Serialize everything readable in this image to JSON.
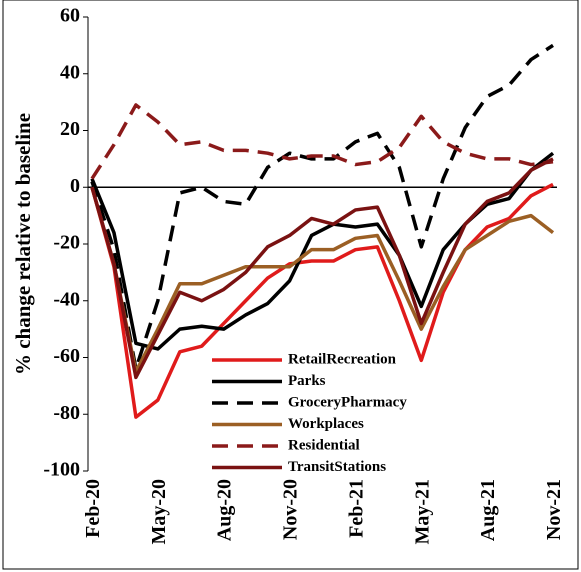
{
  "chart_data": {
    "type": "line",
    "y_label": "% change relative to baseline",
    "categories": [
      "Feb-20",
      null,
      null,
      "May-20",
      null,
      null,
      "Aug-20",
      null,
      null,
      "Nov-20",
      null,
      null,
      "Feb-21",
      null,
      null,
      "May-21",
      null,
      null,
      "Aug-21",
      null,
      null,
      "Nov-21"
    ],
    "ylim": [
      -100,
      60
    ],
    "yticks": [
      -100,
      -80,
      -60,
      -40,
      -20,
      0,
      20,
      40,
      60
    ],
    "legend": "bottom-left",
    "series": [
      {
        "name": "RetailRecreation",
        "color": "#e01b1b",
        "style": "solid",
        "values": [
          0,
          -28,
          -81,
          -75,
          -58,
          -56,
          -48,
          -40,
          -32,
          -27,
          -26,
          -26,
          -22,
          -21,
          -40,
          -61,
          -37,
          -22,
          -14,
          -11,
          -3,
          1
        ]
      },
      {
        "name": "Parks",
        "color": "#000000",
        "style": "solid",
        "values": [
          3,
          -16,
          -55,
          -57,
          -50,
          -49,
          -50,
          -45,
          -41,
          -33,
          -17,
          -13,
          -14,
          -13,
          -24,
          -42,
          -22,
          -13,
          -6,
          -4,
          6,
          12
        ]
      },
      {
        "name": "GroceryPharmacy",
        "color": "#000000",
        "style": "dashed",
        "values": [
          2,
          -22,
          -64,
          -40,
          -2,
          0,
          -5,
          -6,
          7,
          12,
          10,
          10,
          16,
          19,
          7,
          -21,
          3,
          21,
          32,
          36,
          45,
          50
        ]
      },
      {
        "name": "Workplaces",
        "color": "#9b5f24",
        "style": "solid",
        "values": [
          0,
          -27,
          -65,
          -50,
          -34,
          -34,
          -31,
          -28,
          -28,
          -28,
          -22,
          -22,
          -18,
          -17,
          -33,
          -50,
          -35,
          -22,
          -17,
          -12,
          -10,
          -16
        ]
      },
      {
        "name": "Residential",
        "color": "#8b1a1a",
        "style": "dashed",
        "values": [
          3,
          15,
          29,
          23,
          15,
          16,
          13,
          13,
          12,
          10,
          11,
          11,
          8,
          9,
          14,
          25,
          16,
          12,
          10,
          10,
          8,
          9
        ]
      },
      {
        "name": "TransitStations",
        "color": "#7a1212",
        "style": "solid",
        "values": [
          0,
          -27,
          -67,
          -52,
          -37,
          -40,
          -36,
          -30,
          -21,
          -17,
          -11,
          -13,
          -8,
          -7,
          -24,
          -48,
          -30,
          -13,
          -5,
          -2,
          6,
          10
        ]
      }
    ]
  }
}
